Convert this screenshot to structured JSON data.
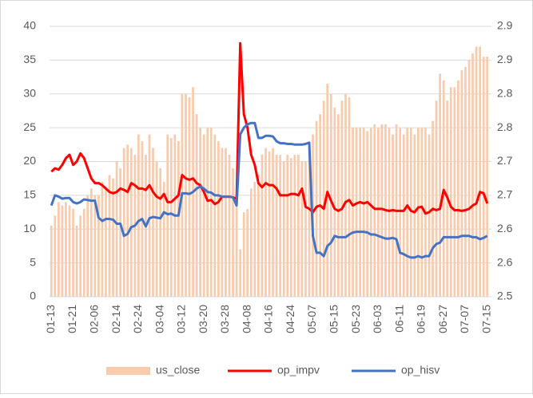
{
  "chart_data": {
    "type": "bar",
    "categories": [
      "01-13",
      null,
      null,
      null,
      null,
      null,
      "01-21",
      null,
      null,
      null,
      null,
      null,
      "02-06",
      null,
      null,
      null,
      null,
      null,
      "02-14",
      null,
      null,
      null,
      null,
      null,
      "02-24",
      null,
      null,
      null,
      null,
      null,
      "03-04",
      null,
      null,
      null,
      null,
      null,
      "03-12",
      null,
      null,
      null,
      null,
      null,
      "03-20",
      null,
      null,
      null,
      null,
      null,
      "03-28",
      null,
      null,
      null,
      null,
      null,
      "04-08",
      null,
      null,
      null,
      null,
      null,
      "04-16",
      null,
      null,
      null,
      null,
      null,
      "04-24",
      null,
      null,
      null,
      null,
      null,
      "05-07",
      null,
      null,
      null,
      null,
      null,
      "05-15",
      null,
      null,
      null,
      null,
      null,
      "05-23",
      null,
      null,
      null,
      null,
      null,
      "06-03",
      null,
      null,
      null,
      null,
      null,
      "06-11",
      null,
      null,
      null,
      null,
      null,
      "06-19",
      null,
      null,
      null,
      null,
      null,
      "06-27",
      null,
      null,
      null,
      null,
      null,
      "07-07",
      null,
      null,
      null,
      null,
      null,
      "07-15"
    ],
    "series": [
      {
        "name": "us_close",
        "type": "bar",
        "axis": "y2",
        "color": "#f8cbad",
        "values": [
          2.605,
          2.62,
          2.64,
          2.635,
          2.64,
          2.635,
          2.63,
          2.605,
          2.62,
          2.63,
          2.65,
          2.66,
          2.65,
          2.65,
          2.67,
          2.66,
          2.68,
          2.675,
          2.7,
          2.69,
          2.72,
          2.725,
          2.72,
          2.71,
          2.74,
          2.73,
          2.71,
          2.74,
          2.72,
          2.7,
          2.69,
          2.67,
          2.74,
          2.735,
          2.74,
          2.73,
          2.8,
          2.8,
          2.795,
          2.81,
          2.77,
          2.75,
          2.74,
          2.75,
          2.75,
          2.74,
          2.73,
          2.72,
          2.72,
          2.71,
          2.69,
          2.64,
          2.57,
          2.625,
          2.63,
          2.66,
          2.67,
          2.68,
          2.71,
          2.72,
          2.715,
          2.72,
          2.71,
          2.71,
          2.7,
          2.71,
          2.705,
          2.71,
          2.71,
          2.7,
          2.7,
          2.725,
          2.74,
          2.76,
          2.77,
          2.79,
          2.815,
          2.8,
          2.78,
          2.77,
          2.79,
          2.8,
          2.795,
          2.75,
          2.75,
          2.75,
          2.75,
          2.745,
          2.75,
          2.755,
          2.75,
          2.755,
          2.755,
          2.75,
          2.74,
          2.755,
          2.75,
          2.74,
          2.75,
          2.75,
          2.74,
          2.75,
          2.75,
          2.75,
          2.74,
          2.76,
          2.79,
          2.83,
          2.82,
          2.79,
          2.81,
          2.81,
          2.82,
          2.835,
          2.84,
          2.85,
          2.86,
          2.87,
          2.87,
          2.855,
          2.855
        ]
      },
      {
        "name": "op_impv",
        "type": "line",
        "color": "#ff0000",
        "values": [
          18.5,
          19,
          18.8,
          19.5,
          20.5,
          21,
          19.5,
          20,
          21.2,
          20.5,
          19,
          17.5,
          16.8,
          16.8,
          16.5,
          16,
          15.5,
          15.3,
          15.5,
          16,
          15.8,
          15.5,
          16.8,
          16.5,
          16,
          16,
          15.8,
          16.5,
          15.5,
          14.8,
          14.5,
          15.2,
          14,
          14,
          14.5,
          15,
          18,
          17.5,
          17.3,
          17.5,
          16.8,
          16.5,
          15.5,
          14.2,
          14.3,
          13.7,
          14,
          14.8,
          14.8,
          14.8,
          14.7,
          14.5,
          37.5,
          27,
          25,
          21,
          19.5,
          16.8,
          16.2,
          16.8,
          16.5,
          16.5,
          16,
          15,
          15,
          15,
          15.2,
          15.2,
          15,
          16,
          13.3,
          13,
          12.5,
          13.3,
          13.5,
          13,
          15.5,
          14.2,
          13,
          12.7,
          13,
          14,
          14.3,
          13.5,
          13.8,
          14,
          13.8,
          14,
          13.5,
          13,
          13,
          13,
          12.8,
          12.7,
          12.8,
          12.7,
          12.7,
          12.7,
          13.5,
          12.7,
          12.5,
          13.2,
          13.3,
          12.3,
          12.5,
          13,
          12.8,
          13,
          15.8,
          14.7,
          13.3,
          12.8,
          12.8,
          12.7,
          12.8,
          13,
          13.5,
          13.8,
          15.5,
          15.3,
          13.8
        ]
      },
      {
        "name": "op_hisv",
        "type": "line",
        "color": "#4472c4",
        "values": [
          13.5,
          15,
          14.8,
          14.5,
          14.6,
          14.6,
          14,
          13.8,
          14,
          14.4,
          14.3,
          14.2,
          14.2,
          11.7,
          11.2,
          11.5,
          11.5,
          11.4,
          10.8,
          10.8,
          9,
          9.3,
          10.3,
          10.5,
          11.2,
          11.5,
          10.4,
          11.6,
          11.8,
          11.7,
          11.6,
          12.5,
          12.2,
          12.3,
          12,
          12,
          15.3,
          15.3,
          15.2,
          15.5,
          16,
          16.3,
          16,
          15.5,
          15.4,
          15,
          15,
          14.8,
          14.8,
          14.8,
          14.7,
          13.5,
          24,
          25,
          25.5,
          25.7,
          25.7,
          23.5,
          23.5,
          23.8,
          23.8,
          23.7,
          23,
          22.7,
          22.7,
          22.6,
          22.6,
          22.5,
          22.5,
          22.5,
          22.6,
          22.8,
          9,
          6.5,
          6.5,
          6,
          7.5,
          8,
          9,
          8.8,
          8.8,
          8.8,
          9.2,
          9.5,
          9.6,
          9.6,
          9.6,
          9.5,
          9.2,
          9.2,
          9,
          8.8,
          8.6,
          8.6,
          8.7,
          8.5,
          6.5,
          6.3,
          6,
          5.8,
          5.8,
          6,
          5.8,
          6,
          6,
          7.2,
          7.8,
          8,
          8.8,
          8.8,
          8.8,
          8.8,
          8.8,
          9,
          9,
          9,
          8.8,
          8.8,
          8.5,
          8.7,
          9
        ]
      }
    ],
    "ylim": [
      0,
      40
    ],
    "yticks": [
      0,
      5,
      10,
      15,
      20,
      25,
      30,
      35,
      40
    ],
    "y2lim": [
      2.5,
      2.9
    ],
    "y2ticks": [
      2.5,
      {
        "value": 2.55,
        "label": "2.6"
      },
      2.6,
      {
        "value": 2.65,
        "label": "2.7"
      },
      2.7,
      {
        "value": 2.75,
        "label": "2.8"
      },
      2.8,
      {
        "value": 2.85,
        "label": "2.9"
      },
      2.9
    ],
    "grid": true,
    "legend": "bottom"
  }
}
